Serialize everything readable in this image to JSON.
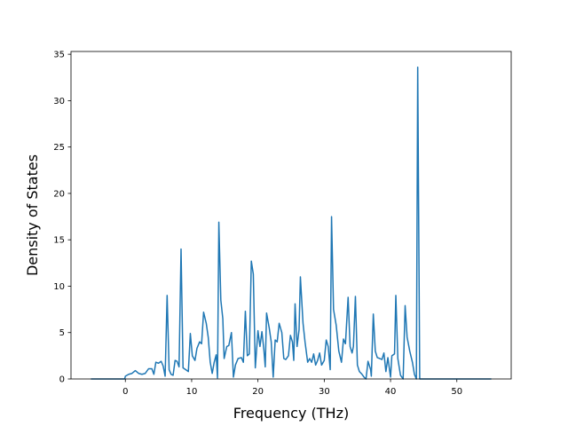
{
  "chart_data": {
    "type": "line",
    "x_label": "Frequency (THz)",
    "y_label": "Density of States",
    "xlim": [
      -8.2,
      58.2
    ],
    "ylim": [
      0,
      35.3
    ],
    "xticks": [
      0,
      10,
      20,
      30,
      40,
      50
    ],
    "yticks": [
      0,
      5,
      10,
      15,
      20,
      25,
      30,
      35
    ],
    "grid": false,
    "series": [
      {
        "color": "#1f77b4",
        "x": [
          -5.2,
          -0.1,
          0,
          0.5,
          1.0,
          1.5,
          2.0,
          2.5,
          3.0,
          3.5,
          4.0,
          4.3,
          4.6,
          5.0,
          5.4,
          5.7,
          6.0,
          6.3,
          6.6,
          6.9,
          7.2,
          7.5,
          7.8,
          8.1,
          8.4,
          8.7,
          9.1,
          9.5,
          9.8,
          10.1,
          10.5,
          10.8,
          11.2,
          11.5,
          11.8,
          12.2,
          12.5,
          12.8,
          13.1,
          13.4,
          13.7,
          13.9,
          14.1,
          14.4,
          14.7,
          14.9,
          15.3,
          15.6,
          16.0,
          16.3,
          16.6,
          17.0,
          17.5,
          17.8,
          18.1,
          18.4,
          18.7,
          19.0,
          19.3,
          19.6,
          20.0,
          20.3,
          20.6,
          20.9,
          21.1,
          21.3,
          21.7,
          22.0,
          22.3,
          22.6,
          22.9,
          23.2,
          23.6,
          23.9,
          24.2,
          24.6,
          24.9,
          25.2,
          25.4,
          25.6,
          25.9,
          26.2,
          26.4,
          26.8,
          27.1,
          27.5,
          27.8,
          28.1,
          28.4,
          28.7,
          29.0,
          29.3,
          29.6,
          30.0,
          30.3,
          30.6,
          30.9,
          31.1,
          31.4,
          31.8,
          32.2,
          32.6,
          32.9,
          33.2,
          33.6,
          33.9,
          34.2,
          34.4,
          34.7,
          35.0,
          35.3,
          35.7,
          36.0,
          36.3,
          36.6,
          37.0,
          37.1,
          37.4,
          37.7,
          38.0,
          38.4,
          38.7,
          39.0,
          39.3,
          39.6,
          40.0,
          40.2,
          40.6,
          40.8,
          41.1,
          41.5,
          41.9,
          42.2,
          42.5,
          42.9,
          43.3,
          43.6,
          43.9,
          44.1,
          44.4,
          55.2
        ],
        "values": [
          0,
          0,
          0.3,
          0.5,
          0.6,
          0.9,
          0.6,
          0.5,
          0.6,
          1.1,
          1.1,
          0.5,
          1.8,
          1.7,
          1.9,
          1.4,
          0.3,
          9.0,
          1.0,
          0.5,
          0.4,
          2.0,
          1.9,
          1.3,
          14.0,
          1.2,
          1.0,
          0.8,
          4.9,
          2.5,
          2.0,
          3.3,
          4.0,
          3.8,
          7.2,
          6.0,
          4.5,
          1.8,
          0.6,
          1.8,
          2.6,
          0.1,
          16.9,
          8.5,
          6.5,
          2.2,
          3.5,
          3.6,
          5.0,
          0.2,
          1.5,
          2.2,
          2.3,
          1.8,
          7.3,
          2.5,
          2.7,
          12.7,
          11.3,
          1.2,
          5.2,
          3.5,
          5.1,
          3.1,
          1.3,
          7.1,
          5.5,
          4.0,
          0.2,
          4.2,
          4.0,
          6.0,
          5.0,
          2.2,
          2.1,
          2.5,
          4.7,
          4.0,
          2.0,
          8.1,
          3.5,
          5.3,
          11.0,
          6.0,
          4.0,
          1.8,
          2.2,
          1.8,
          2.7,
          1.5,
          2.0,
          2.8,
          1.5,
          2.0,
          4.2,
          3.5,
          1.0,
          17.5,
          7.5,
          5.8,
          3.0,
          1.8,
          4.3,
          3.8,
          8.8,
          3.5,
          2.8,
          3.5,
          8.9,
          1.5,
          0.8,
          0.5,
          0.2,
          0,
          1.9,
          1.0,
          0.3,
          7.0,
          3.0,
          2.3,
          2.2,
          2.1,
          2.8,
          0.8,
          2.3,
          0.2,
          2.5,
          2.7,
          9.0,
          2.2,
          0.4,
          0,
          7.9,
          4.5,
          3.0,
          1.8,
          0.5,
          0,
          33.6,
          0,
          0
        ]
      }
    ]
  }
}
